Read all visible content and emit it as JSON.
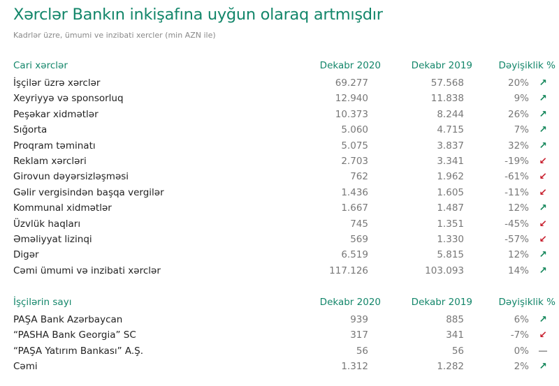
{
  "title": "Xərclər Bankın inkişafına uyğun olaraq artmışdır",
  "subtitle": "Kadrlər üzre, ümumi ve inzibati xercler (min AZN ile)",
  "colors": {
    "accent": "#13866a",
    "up": "#13865a",
    "down": "#c8202f",
    "flat": "#999999"
  },
  "tables": [
    {
      "headers": [
        "Cari xərclər",
        "Dekabr 2020",
        "Dekabr 2019",
        "Dəyişiklik %"
      ],
      "rows": [
        {
          "label": "İşçilər üzrə xərclər",
          "v2020": "69.277",
          "v2019": "57.568",
          "change": "20%",
          "trend": "up"
        },
        {
          "label": "Xeyriyyə və sponsorluq",
          "v2020": "12.940",
          "v2019": "11.838",
          "change": "9%",
          "trend": "up"
        },
        {
          "label": "Peşəkar xidmətlər",
          "v2020": "10.373",
          "v2019": "8.244",
          "change": "26%",
          "trend": "up"
        },
        {
          "label": "Sığorta",
          "v2020": "5.060",
          "v2019": "4.715",
          "change": "7%",
          "trend": "up"
        },
        {
          "label": "Proqram təminatı",
          "v2020": "5.075",
          "v2019": "3.837",
          "change": "32%",
          "trend": "up"
        },
        {
          "label": "Reklam xərcləri",
          "v2020": "2.703",
          "v2019": "3.341",
          "change": "-19%",
          "trend": "down"
        },
        {
          "label": "Girovun dəyərsizləşməsi",
          "v2020": "762",
          "v2019": "1.962",
          "change": "-61%",
          "trend": "down"
        },
        {
          "label": "Gəlir vergisindən başqa vergilər",
          "v2020": "1.436",
          "v2019": "1.605",
          "change": "-11%",
          "trend": "down"
        },
        {
          "label": "Kommunal xidmətlər",
          "v2020": "1.667",
          "v2019": "1.487",
          "change": "12%",
          "trend": "up"
        },
        {
          "label": "Üzvlük haqları",
          "v2020": "745",
          "v2019": "1.351",
          "change": "-45%",
          "trend": "down"
        },
        {
          "label": "Əməliyyat lizinqi",
          "v2020": "569",
          "v2019": "1.330",
          "change": "-57%",
          "trend": "down"
        },
        {
          "label": "Digər",
          "v2020": "6.519",
          "v2019": "5.815",
          "change": "12%",
          "trend": "up"
        },
        {
          "label": "Cəmi ümumi və inzibati xərclər",
          "v2020": "117.126",
          "v2019": "103.093",
          "change": "14%",
          "trend": "up"
        }
      ]
    },
    {
      "headers": [
        "İşçilərin sayı",
        "Dekabr 2020",
        "Dekabr 2019",
        "Dəyişiklik %"
      ],
      "rows": [
        {
          "label": "PAŞA Bank Azərbaycan",
          "v2020": "939",
          "v2019": "885",
          "change": "6%",
          "trend": "up"
        },
        {
          "label": "“PASHA Bank Georgia” SC",
          "v2020": "317",
          "v2019": "341",
          "change": "-7%",
          "trend": "down"
        },
        {
          "label": "“PAŞA Yatırım Bankası” A.Ş.",
          "v2020": "56",
          "v2019": "56",
          "change": "0%",
          "trend": "flat"
        },
        {
          "label": "Cəmi",
          "v2020": "1.312",
          "v2019": "1.282",
          "change": "2%",
          "trend": "up"
        }
      ]
    }
  ]
}
